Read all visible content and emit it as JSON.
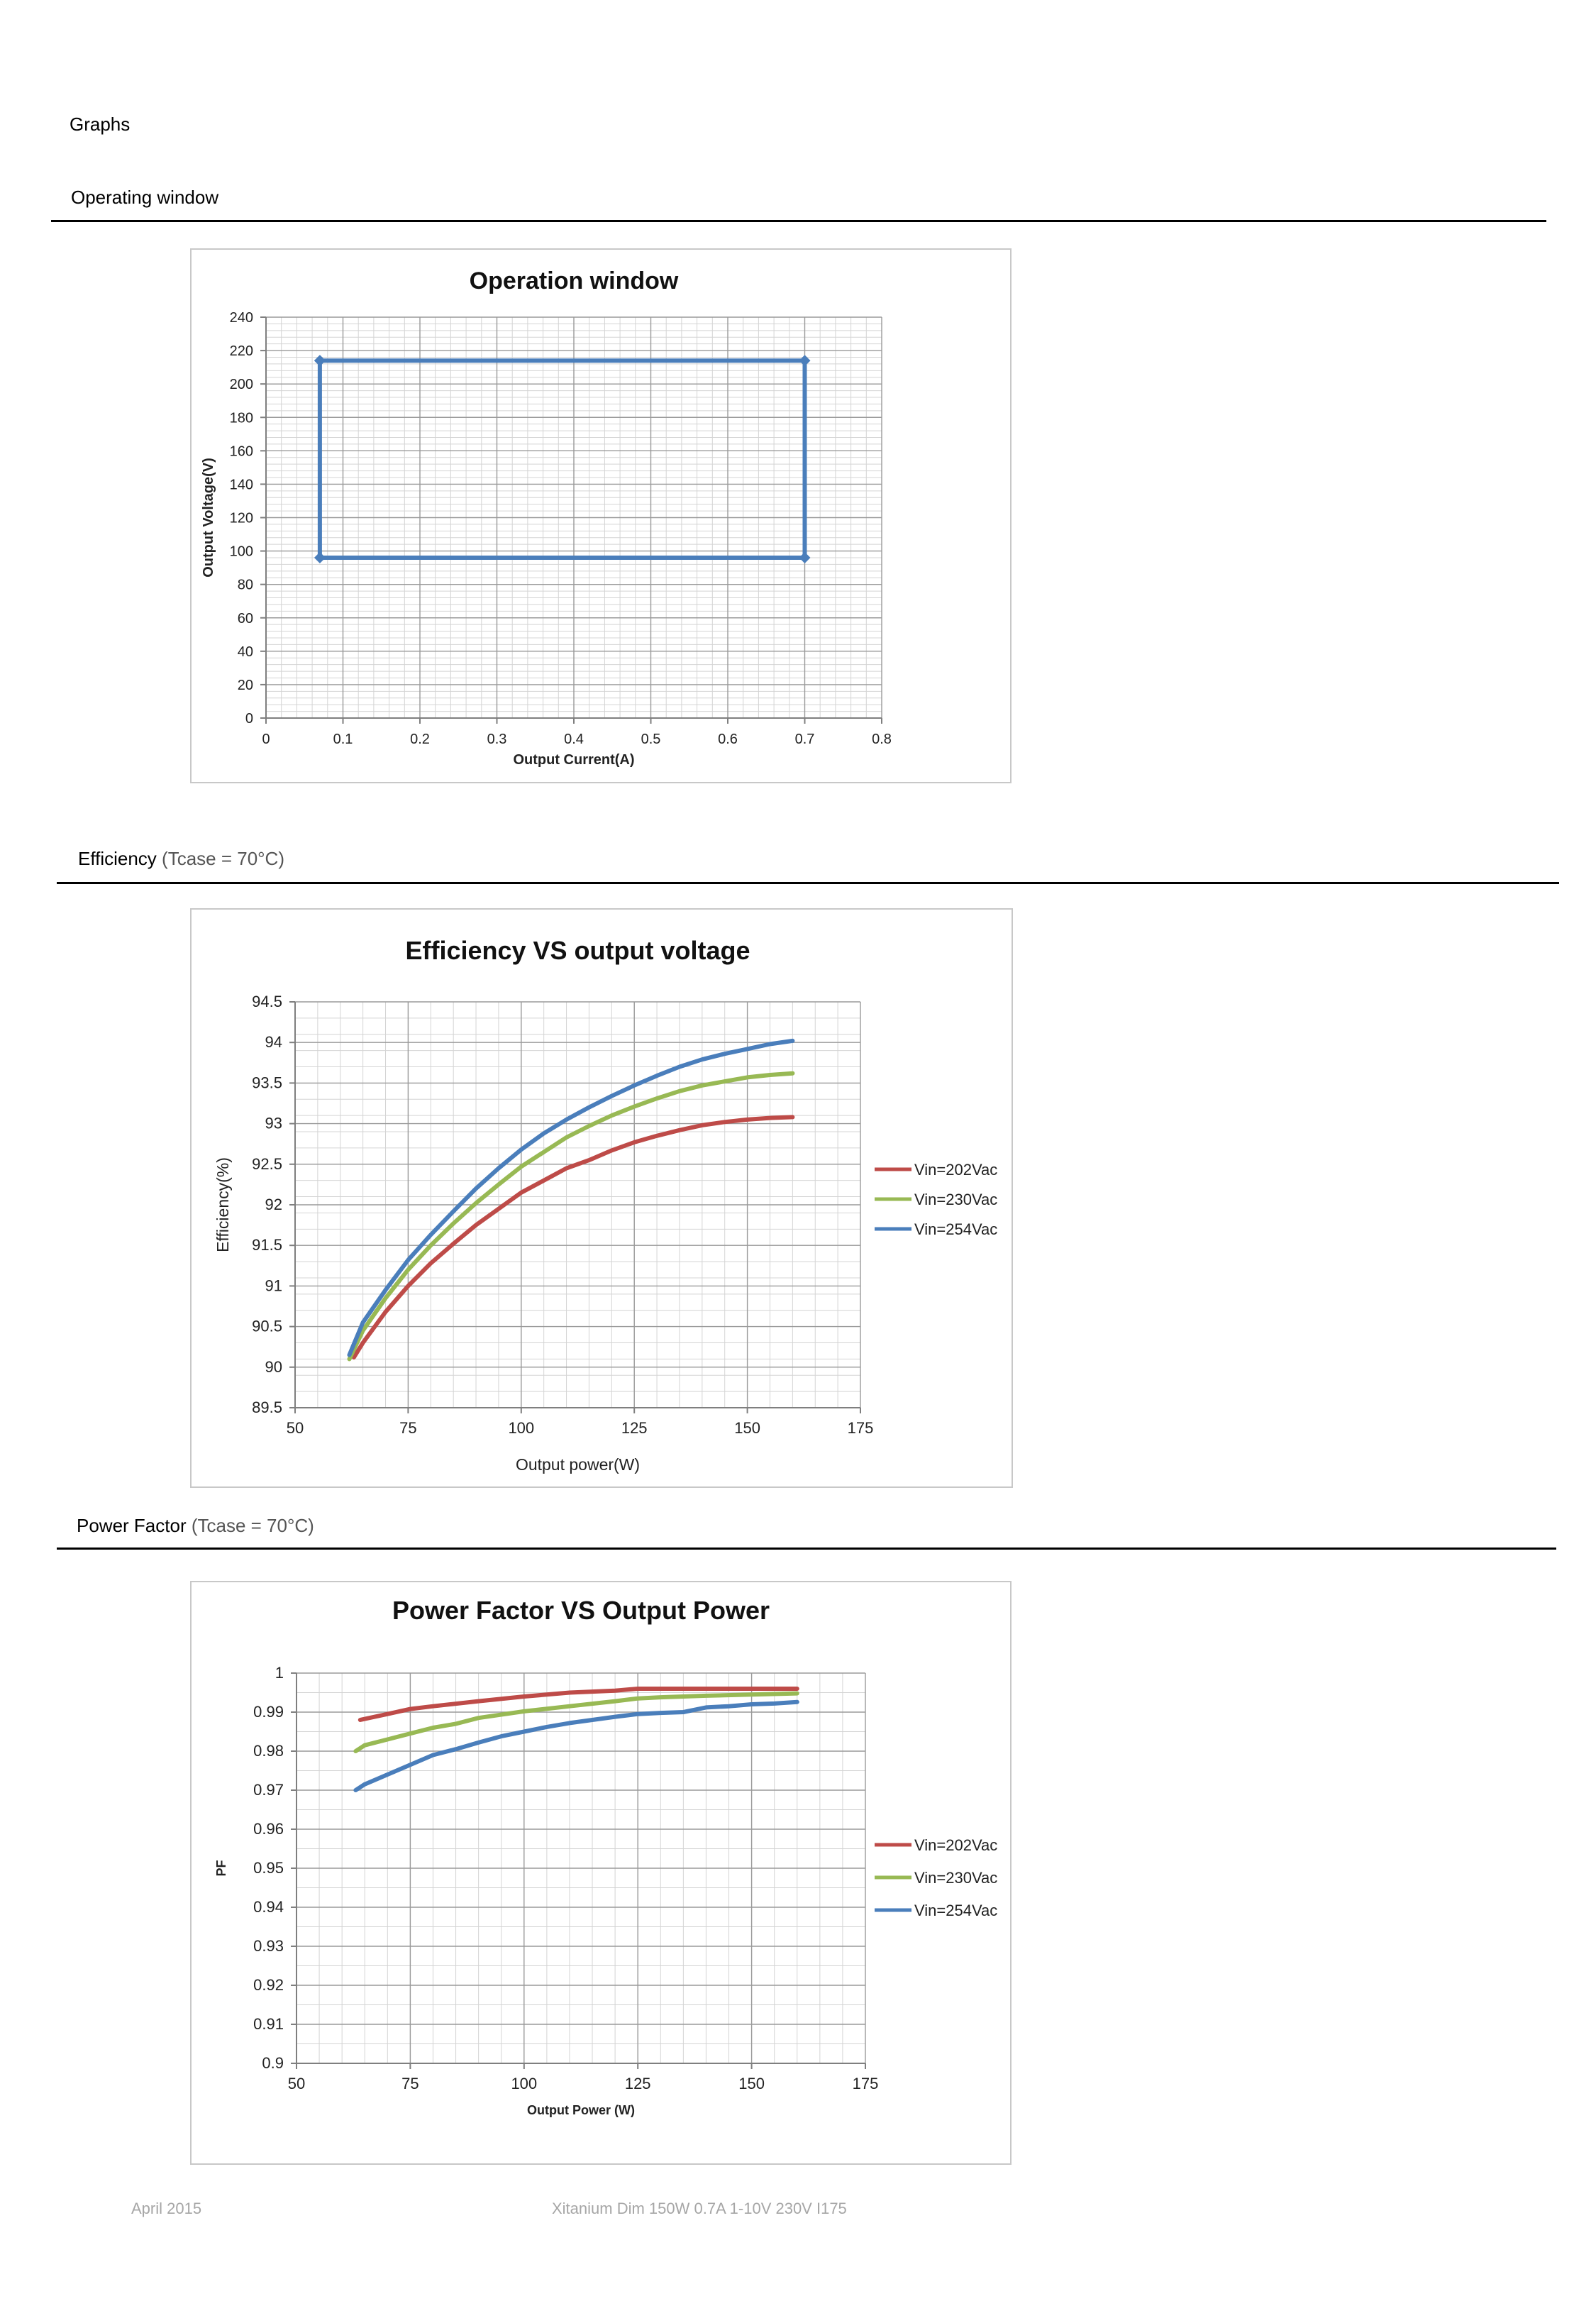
{
  "page": {
    "title": "Graphs",
    "footer_date": "April 2015",
    "footer_product": "Xitanium Dim 150W 0.7A 1-10V 230V I175"
  },
  "sections": {
    "operating": {
      "title": "Operating window",
      "subtitle": ""
    },
    "efficiency": {
      "title": "Efficiency",
      "subtitle": "(Tcase = 70°C)"
    },
    "power_factor": {
      "title": "Power Factor",
      "subtitle": "(Tcase = 70°C)"
    }
  },
  "chart_data": [
    {
      "id": "operation",
      "type": "line",
      "title": "Operation window",
      "xlabel": "Output Current(A)",
      "ylabel": "Output Voltage(V)",
      "xlim": [
        0,
        0.8
      ],
      "ylim": [
        0,
        240
      ],
      "xticks": [
        0,
        0.1,
        0.2,
        0.3,
        0.4,
        0.5,
        0.6,
        0.7,
        0.8
      ],
      "yticks": [
        0,
        20,
        40,
        60,
        80,
        100,
        120,
        140,
        160,
        180,
        200,
        220,
        240
      ],
      "xtick_labels": [
        "0",
        "0.1",
        "0.2",
        "0.3",
        "0.4",
        "0.5",
        "0.6",
        "0.7",
        "0.8"
      ],
      "ytick_labels": [
        "0",
        "20",
        "40",
        "60",
        "80",
        "100",
        "120",
        "140",
        "160",
        "180",
        "200",
        "220",
        "240"
      ],
      "grid": true,
      "series": [
        {
          "color": "#4a7ebb",
          "x": [
            0.07,
            0.7,
            0.7,
            0.07,
            0.07
          ],
          "y": [
            214,
            214,
            96,
            96,
            214
          ]
        }
      ]
    },
    {
      "id": "efficiency",
      "type": "line",
      "title": "Efficiency VS output voltage",
      "xlabel": "Output power(W)",
      "ylabel": "Efficiency(%)",
      "xlim": [
        50,
        175
      ],
      "ylim": [
        89.5,
        94.5
      ],
      "xticks": [
        50,
        75,
        100,
        125,
        150,
        175
      ],
      "yticks": [
        89.5,
        90,
        90.5,
        91,
        91.5,
        92,
        92.5,
        93,
        93.5,
        94,
        94.5
      ],
      "xtick_labels": [
        "50",
        "75",
        "100",
        "125",
        "150",
        "175"
      ],
      "ytick_labels": [
        "89.5",
        "90",
        "90.5",
        "91",
        "91.5",
        "92",
        "92.5",
        "93",
        "93.5",
        "94",
        "94.5"
      ],
      "grid": true,
      "legend": "right",
      "series": [
        {
          "name": "Vin=202Vac",
          "color": "#be4b48",
          "x": [
            63,
            65,
            70,
            75,
            80,
            85,
            90,
            95,
            100,
            105,
            110,
            115,
            120,
            125,
            130,
            135,
            140,
            145,
            150,
            155,
            160
          ],
          "y": [
            90.12,
            90.3,
            90.68,
            91.0,
            91.28,
            91.52,
            91.75,
            91.95,
            92.15,
            92.3,
            92.45,
            92.55,
            92.67,
            92.77,
            92.85,
            92.92,
            92.98,
            93.02,
            93.05,
            93.07,
            93.08
          ]
        },
        {
          "name": "Vin=230Vac",
          "color": "#98b954",
          "x": [
            62,
            65,
            70,
            75,
            80,
            85,
            90,
            95,
            100,
            105,
            110,
            115,
            120,
            125,
            130,
            135,
            140,
            145,
            150,
            155,
            160
          ],
          "y": [
            90.1,
            90.45,
            90.85,
            91.2,
            91.5,
            91.77,
            92.02,
            92.25,
            92.47,
            92.65,
            92.83,
            92.97,
            93.1,
            93.21,
            93.31,
            93.4,
            93.47,
            93.52,
            93.57,
            93.6,
            93.62
          ]
        },
        {
          "name": "Vin=254Vac",
          "color": "#4a7ebb",
          "x": [
            62,
            65,
            70,
            75,
            80,
            85,
            90,
            95,
            100,
            105,
            110,
            115,
            120,
            125,
            130,
            135,
            140,
            145,
            150,
            155,
            160
          ],
          "y": [
            90.15,
            90.55,
            90.95,
            91.32,
            91.63,
            91.92,
            92.2,
            92.45,
            92.68,
            92.88,
            93.05,
            93.2,
            93.34,
            93.47,
            93.59,
            93.7,
            93.79,
            93.86,
            93.92,
            93.98,
            94.02
          ]
        }
      ]
    },
    {
      "id": "power_factor",
      "type": "line",
      "title": "Power Factor VS Output Power",
      "xlabel": "Output Power (W)",
      "ylabel": "PF",
      "xlim": [
        50,
        175
      ],
      "ylim": [
        0.9,
        1
      ],
      "xticks": [
        50,
        75,
        100,
        125,
        150,
        175
      ],
      "yticks": [
        0.9,
        0.91,
        0.92,
        0.93,
        0.94,
        0.95,
        0.96,
        0.97,
        0.98,
        0.99,
        1
      ],
      "xtick_labels": [
        "50",
        "75",
        "100",
        "125",
        "150",
        "175"
      ],
      "ytick_labels": [
        "0.9",
        "0.91",
        "0.92",
        "0.93",
        "0.94",
        "0.95",
        "0.96",
        "0.97",
        "0.98",
        "0.99",
        "1"
      ],
      "grid": true,
      "legend": "right",
      "series": [
        {
          "name": "Vin=202Vac",
          "color": "#be4b48",
          "x": [
            64,
            70,
            75,
            80,
            90,
            100,
            110,
            120,
            125,
            130,
            140,
            150,
            160
          ],
          "y": [
            0.988,
            0.9895,
            0.9908,
            0.9915,
            0.9928,
            0.994,
            0.995,
            0.9955,
            0.996,
            0.996,
            0.996,
            0.996,
            0.996
          ]
        },
        {
          "name": "Vin=230Vac",
          "color": "#98b954",
          "x": [
            63,
            65,
            70,
            75,
            80,
            85,
            90,
            100,
            110,
            120,
            125,
            130,
            140,
            150,
            160
          ],
          "y": [
            0.98,
            0.9815,
            0.983,
            0.9845,
            0.986,
            0.987,
            0.9885,
            0.9902,
            0.9915,
            0.9928,
            0.9935,
            0.9938,
            0.9942,
            0.9945,
            0.9948
          ]
        },
        {
          "name": "Vin=254Vac",
          "color": "#4a7ebb",
          "x": [
            63,
            65,
            70,
            75,
            80,
            85,
            90,
            95,
            100,
            105,
            110,
            115,
            120,
            125,
            130,
            135,
            140,
            145,
            150,
            155,
            160
          ],
          "y": [
            0.97,
            0.9715,
            0.974,
            0.9765,
            0.979,
            0.9805,
            0.9822,
            0.9838,
            0.985,
            0.9862,
            0.9872,
            0.988,
            0.9888,
            0.9895,
            0.9898,
            0.99,
            0.9912,
            0.9915,
            0.992,
            0.9922,
            0.9926
          ]
        }
      ]
    }
  ]
}
